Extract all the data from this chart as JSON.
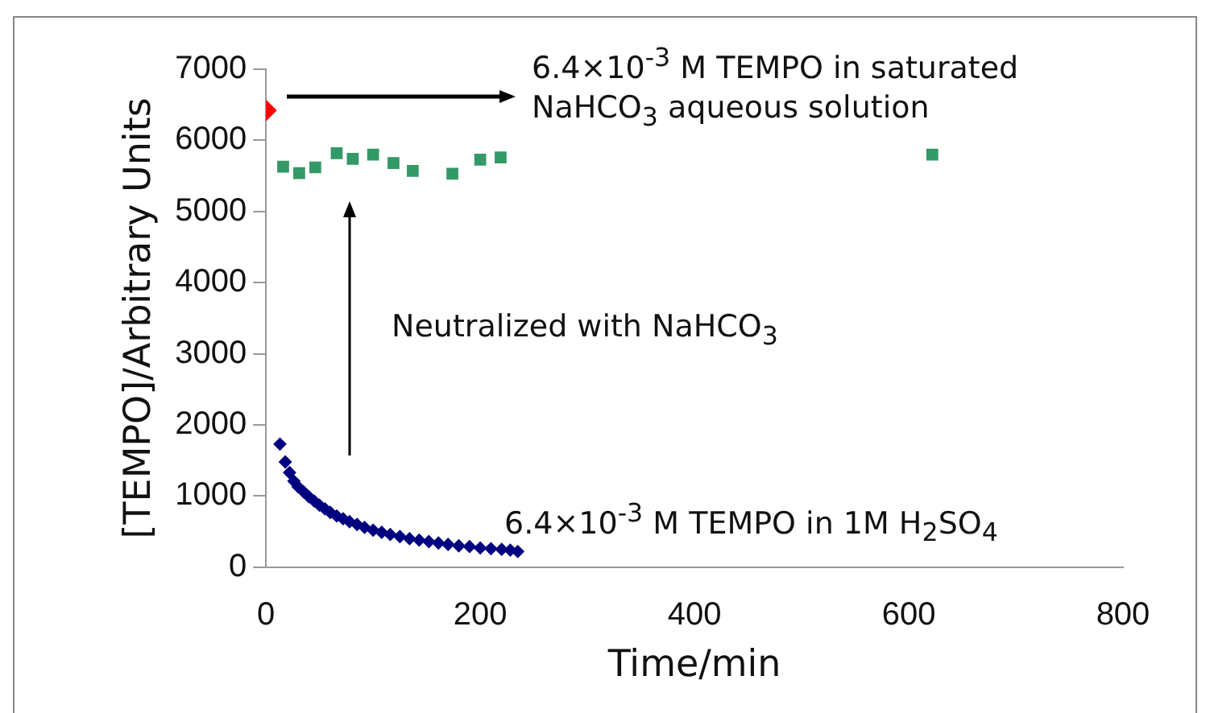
{
  "chart_data": {
    "type": "scatter",
    "xlabel": "Time/min",
    "ylabel": "[TEMPO]/Arbitrary Units",
    "xlim": [
      0,
      800
    ],
    "xticks": [
      0,
      200,
      400,
      600,
      800
    ],
    "ylim": [
      0,
      7000
    ],
    "yticks": [
      0,
      1000,
      2000,
      3000,
      4000,
      5000,
      6000,
      7000
    ],
    "grid": false,
    "legend": false,
    "series": [
      {
        "color": "#ff0000",
        "marker": "diamond",
        "x": [
          0
        ],
        "values": [
          6420
        ]
      },
      {
        "color": "#339966",
        "marker": "square",
        "x": [
          16,
          31,
          46,
          66,
          81,
          100,
          119,
          137,
          174,
          200,
          219,
          622
        ],
        "values": [
          5630,
          5540,
          5620,
          5820,
          5740,
          5800,
          5680,
          5570,
          5530,
          5730,
          5760,
          5800
        ]
      },
      {
        "color": "#000080",
        "marker": "diamond",
        "x": [
          13,
          18,
          22,
          26,
          30,
          35,
          40,
          45,
          50,
          55,
          60,
          66,
          72,
          78,
          85,
          92,
          100,
          108,
          116,
          125,
          134,
          143,
          152,
          161,
          170,
          180,
          190,
          200,
          210,
          220,
          228,
          235
        ],
        "values": [
          1730,
          1480,
          1330,
          1210,
          1130,
          1060,
          990,
          930,
          870,
          820,
          770,
          720,
          680,
          640,
          600,
          560,
          520,
          490,
          460,
          430,
          400,
          380,
          360,
          340,
          320,
          300,
          290,
          270,
          260,
          250,
          240,
          220
        ]
      }
    ],
    "annotations": [
      "6.4×10$^{-3}$ M TEMPO in saturated NaHCO$_{3}$ aqueous solution",
      "Neutralized with NaHCO$_{3}$",
      "6.4×10$^{-3}$ M TEMPO in 1M H$_{2}$SO$_{4}$"
    ]
  }
}
